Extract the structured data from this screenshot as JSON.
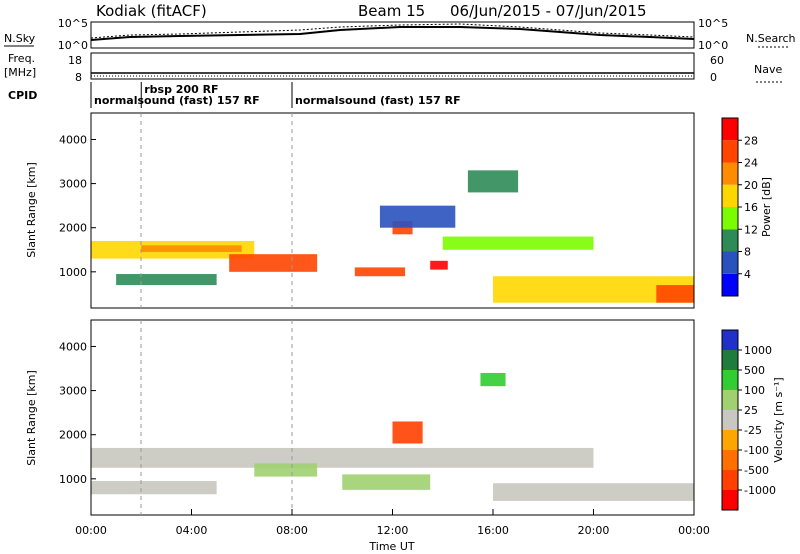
{
  "header": {
    "site": "Kodiak (fitACF)",
    "beam": "Beam 15",
    "dates": "06/Jun/2015 - 07/Jun/2015"
  },
  "top_panel_labels": {
    "nsky": "N.Sky",
    "nsearch": "N.Search",
    "freq_line1": "Freq.",
    "freq_line2": "[MHz]",
    "nave": "Nave",
    "cpid": "CPID",
    "noise_ticks_left": [
      "10^5",
      "10^0"
    ],
    "noise_ticks_right": [
      "10^5",
      "10^0"
    ],
    "freq_ticks_left": [
      "18",
      "8"
    ],
    "nave_ticks_right": [
      "60",
      "0"
    ]
  },
  "cpid_segments": [
    {
      "start_hour": 0.0,
      "end_hour": 8.0,
      "label": "normalsound (fast) 157 RF"
    },
    {
      "start_hour": 2.0,
      "end_hour": 8.0,
      "label": "rbsp 200 RF"
    },
    {
      "start_hour": 8.0,
      "end_hour": 24.0,
      "label": "normalsound (fast) 157 RF"
    }
  ],
  "chart_data": [
    {
      "type": "heatmap",
      "panel": "power",
      "ylabel": "Slant Range [km]",
      "xlabel": "",
      "ylim": [
        180,
        4600
      ],
      "xlim_hours": [
        0,
        24
      ],
      "yticks": [
        "1000",
        "2000",
        "3000",
        "4000"
      ],
      "colorbar": {
        "label": "Power [dB]",
        "ticks": [
          "28",
          "24",
          "20",
          "16",
          "12",
          "8",
          "4"
        ],
        "colors": [
          "#0000ff",
          "#2a52be",
          "#2e8b57",
          "#7cfc00",
          "#ffd700",
          "#ff8c00",
          "#ff4500",
          "#ff0000"
        ]
      },
      "regions": [
        {
          "t0": 0.0,
          "t1": 6.5,
          "r0": 1300,
          "r1": 1700,
          "value": 16
        },
        {
          "t0": 2.0,
          "t1": 6.0,
          "r0": 1450,
          "r1": 1600,
          "value": 22
        },
        {
          "t0": 5.5,
          "t1": 9.0,
          "r0": 1000,
          "r1": 1400,
          "value": 24
        },
        {
          "t0": 10.5,
          "t1": 12.5,
          "r0": 900,
          "r1": 1100,
          "value": 24
        },
        {
          "t0": 12.0,
          "t1": 12.8,
          "r0": 1850,
          "r1": 2150,
          "value": 26
        },
        {
          "t0": 13.5,
          "t1": 14.2,
          "r0": 1050,
          "r1": 1250,
          "value": 28
        },
        {
          "t0": 14.0,
          "t1": 20.0,
          "r0": 1500,
          "r1": 1800,
          "value": 12
        },
        {
          "t0": 16.0,
          "t1": 24.0,
          "r0": 300,
          "r1": 900,
          "value": 18
        },
        {
          "t0": 22.5,
          "t1": 24.0,
          "r0": 300,
          "r1": 700,
          "value": 26
        },
        {
          "t0": 1.0,
          "t1": 5.0,
          "r0": 700,
          "r1": 950,
          "value": 10
        },
        {
          "t0": 15.0,
          "t1": 17.0,
          "r0": 2800,
          "r1": 3300,
          "value": 8
        },
        {
          "t0": 11.5,
          "t1": 14.5,
          "r0": 2000,
          "r1": 2500,
          "value": 6
        }
      ]
    },
    {
      "type": "heatmap",
      "panel": "velocity",
      "ylabel": "Slant Range [km]",
      "xlabel": "Time UT",
      "ylim": [
        180,
        4600
      ],
      "xlim_hours": [
        0,
        24
      ],
      "yticks": [
        "1000",
        "2000",
        "3000",
        "4000"
      ],
      "xticks": [
        "00:00",
        "04:00",
        "08:00",
        "12:00",
        "16:00",
        "20:00",
        "00:00"
      ],
      "colorbar": {
        "label": "Velocity [m s⁻¹]",
        "ticks": [
          "1000",
          "500",
          "100",
          "25",
          "-25",
          "-100",
          "-500",
          "-1000"
        ],
        "colors": [
          "#2030c8",
          "#1e7d3c",
          "#32cd32",
          "#a0d070",
          "#c8c8c0",
          "#ffa500",
          "#ff7000",
          "#ff4000",
          "#ff0000"
        ]
      },
      "regions": [
        {
          "t0": 0.0,
          "t1": 20.0,
          "r0": 1250,
          "r1": 1700,
          "value": 0
        },
        {
          "t0": 6.5,
          "t1": 9.0,
          "r0": 1050,
          "r1": 1350,
          "value": 80
        },
        {
          "t0": 10.0,
          "t1": 13.5,
          "r0": 750,
          "r1": 1100,
          "value": 90
        },
        {
          "t0": 12.0,
          "t1": 13.2,
          "r0": 1800,
          "r1": 2300,
          "value": -700
        },
        {
          "t0": 16.0,
          "t1": 24.0,
          "r0": 500,
          "r1": 900,
          "value": 0
        },
        {
          "t0": 0.0,
          "t1": 5.0,
          "r0": 650,
          "r1": 950,
          "value": 0
        },
        {
          "t0": 15.5,
          "t1": 16.5,
          "r0": 3100,
          "r1": 3400,
          "value": 150
        }
      ]
    }
  ]
}
